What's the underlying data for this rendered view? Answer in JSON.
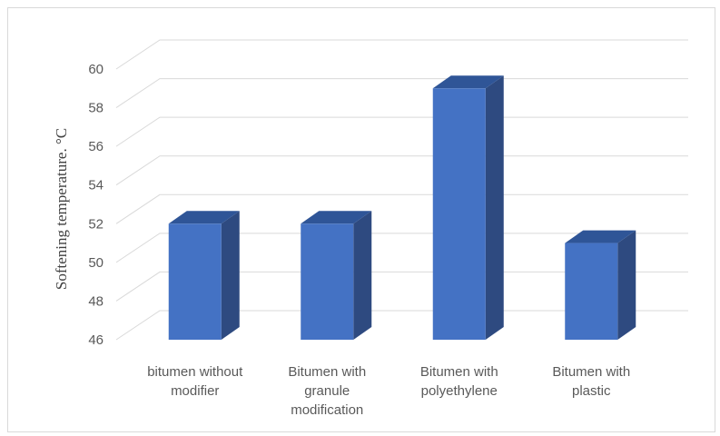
{
  "chart_data": {
    "type": "bar",
    "style": "3d-column",
    "title": "",
    "xlabel": "",
    "ylabel": "Softening temperature. °C",
    "ylim": [
      46,
      60
    ],
    "yticks": [
      "46",
      "48",
      "50",
      "52",
      "54",
      "56",
      "58",
      "60"
    ],
    "grid": true,
    "legend": "none",
    "categories": [
      [
        "bitumen without",
        "modifier"
      ],
      [
        "Bitumen with",
        "granule",
        "modification"
      ],
      [
        "Bitumen with",
        "polyethylene"
      ],
      [
        "Bitumen with",
        "plastic"
      ]
    ],
    "values": [
      52,
      52,
      59,
      51
    ],
    "colors": {
      "bar_front": "#4472c4",
      "bar_top": "#2f5597",
      "bar_side": "#2e4a80",
      "grid": "#d9d9d9",
      "text": "#595959"
    }
  }
}
